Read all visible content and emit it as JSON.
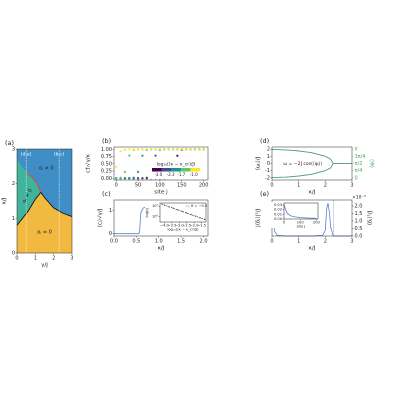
{
  "chart_data": [
    {
      "type": "phase",
      "panel_label": "(a)",
      "xlabel": "γ/J",
      "ylabel": "κ/J",
      "xlim": [
        0,
        3
      ],
      "ylim": [
        0,
        3
      ],
      "xticks": [
        0,
        1,
        2,
        3
      ],
      "yticks": [
        0,
        1,
        2,
        3
      ],
      "regions": [
        {
          "label": "αᵢ ≠ 0",
          "color": "#3f8fc6",
          "x": [
            0,
            3,
            3,
            0
          ],
          "values": [
            0,
            0,
            3,
            3
          ]
        },
        {
          "label": "αᵣ ≠ 0",
          "color": "#3fb39c",
          "x": [
            0,
            0.3,
            0.6,
            1.0,
            1.3,
            1.1,
            0.8,
            0.4,
            0
          ],
          "values": [
            0.8,
            1.0,
            1.2,
            1.55,
            1.75,
            2.0,
            2.2,
            2.4,
            2.7
          ]
        },
        {
          "label": "αᵢ = 0",
          "color": "#f2b941",
          "x": [
            0,
            0,
            0.3,
            0.6,
            1.0,
            1.3,
            1.5,
            2.0,
            2.5,
            3,
            3
          ],
          "values": [
            0,
            0.8,
            1.0,
            1.2,
            1.55,
            1.75,
            1.6,
            1.3,
            1.15,
            1.05,
            0
          ]
        }
      ],
      "lines": [
        {
          "color": "#111111",
          "x": [
            0,
            0.3,
            0.6,
            1.0,
            1.3,
            1.5,
            2.0,
            2.5,
            3
          ],
          "values": [
            0.8,
            1.0,
            1.2,
            1.55,
            1.75,
            1.6,
            1.3,
            1.15,
            1.05
          ]
        },
        {
          "color": "#e0403a",
          "x": [
            0.5,
            0.8,
            1.1,
            1.3
          ],
          "values": [
            2.3,
            2.2,
            2.0,
            1.75
          ]
        }
      ],
      "vlines": [
        {
          "x": 0.5,
          "label": "(d,e)"
        },
        {
          "x": 2.3,
          "label": "(b,c)"
        }
      ]
    },
    {
      "type": "scatter",
      "panel_label": "(b)",
      "xlabel": "site j",
      "ylabel": "c†ⱼ√γ/κ",
      "xlim": [
        -5,
        210
      ],
      "ylim": [
        -0.06,
        1.08
      ],
      "xticks": [
        0,
        50,
        100,
        150,
        200
      ],
      "yticks": [
        {
          "value": 0,
          "label": "0.00"
        },
        {
          "value": 0.25,
          "label": "0.25"
        },
        {
          "value": 0.5,
          "label": "0.50"
        },
        {
          "value": 0.75,
          "label": "0.75"
        },
        {
          "value": 1,
          "label": "1.00"
        }
      ],
      "x": [
        0,
        10,
        20,
        30,
        40,
        50,
        60,
        70,
        80,
        90,
        100,
        110,
        120,
        130,
        140,
        150,
        160,
        170,
        180,
        190,
        200
      ],
      "series": [
        {
          "color": "#440154",
          "values": [
            0,
            0,
            0,
            0,
            0,
            0,
            0,
            0,
            0,
            0,
            0,
            0,
            0.02,
            0.22,
            0.78,
            0.98,
            1,
            1,
            1,
            1,
            1
          ]
        },
        {
          "color": "#3b528b",
          "values": [
            0,
            0,
            0,
            0,
            0,
            0,
            0,
            0.02,
            0.22,
            0.78,
            0.98,
            1,
            1,
            1,
            1,
            1,
            1,
            1,
            1,
            1,
            1
          ]
        },
        {
          "color": "#21918c",
          "values": [
            0,
            0,
            0,
            0,
            0.02,
            0.22,
            0.78,
            0.98,
            1,
            1,
            1,
            1,
            1,
            1,
            1,
            1,
            1,
            1,
            1,
            1,
            1
          ]
        },
        {
          "color": "#5ec962",
          "values": [
            0,
            0.02,
            0.22,
            0.78,
            0.98,
            1,
            1,
            1,
            1,
            1,
            1,
            1,
            1,
            1,
            1,
            1,
            1,
            1,
            1,
            1,
            1
          ]
        },
        {
          "color": "#fde725",
          "values": [
            0.4,
            0.93,
            0.99,
            1,
            1,
            1,
            1,
            1,
            1,
            1,
            1,
            1,
            1,
            1,
            1,
            1,
            1,
            1,
            1,
            1,
            1
          ]
        }
      ],
      "colorbar": {
        "label": "log₁₀((κ − κ_cr)/J)",
        "clim": [
          -3.35,
          -0.65
        ],
        "colors": [
          "#440154",
          "#3b528b",
          "#21918c",
          "#5ec962",
          "#fde725"
        ],
        "ticks": [
          {
            "value": -3.0,
            "label": "-3.0"
          },
          {
            "value": -2.3,
            "label": "-2.3"
          },
          {
            "value": -1.7,
            "label": "-1.7"
          },
          {
            "value": -1.0,
            "label": "-1.0"
          }
        ]
      }
    },
    {
      "type": "line",
      "panel_label": "(c)",
      "xlabel": "κ/J",
      "ylabel": "⟨cⱼ⟩√γ/J",
      "xlim": [
        0,
        2.1
      ],
      "ylim": [
        -0.1,
        1.45
      ],
      "xticks": [
        {
          "value": 0,
          "label": "0.0"
        },
        {
          "value": 0.5,
          "label": "0.5"
        },
        {
          "value": 1,
          "label": "1.0"
        },
        {
          "value": 1.5,
          "label": "1.5"
        },
        {
          "value": 2,
          "label": "2.0"
        }
      ],
      "yticks": [
        0,
        1
      ],
      "series": [
        {
          "color": "#5b7fcf",
          "x": [
            0,
            0.2,
            0.4,
            0.5,
            0.55,
            0.57,
            0.6,
            0.65,
            0.7,
            0.8,
            1,
            1.5,
            2
          ],
          "values": [
            0,
            0,
            0,
            0,
            0,
            0.05,
            0.9,
            1.1,
            1.15,
            1.2,
            1.22,
            1.24,
            1.25
          ]
        }
      ],
      "inset": {
        "xlabel": "log₁₀((κ − κ_cr)/J)",
        "ylabel": "log|c|",
        "xlim": [
          -4.3,
          -1.2
        ],
        "ylim": [
          -0.5,
          1.3
        ],
        "xticks": [
          {
            "value": -4.0,
            "label": "−4.0"
          },
          {
            "value": -3.5,
            "label": "−3.5"
          },
          {
            "value": -3.0,
            "label": "−3.0"
          },
          {
            "value": -2.5,
            "label": "−2.5"
          },
          {
            "value": -2.0,
            "label": "−2.0"
          },
          {
            "value": -1.5,
            "label": "−1.5"
          }
        ],
        "yticks": [
          {
            "value": 0,
            "label": "10⁰"
          },
          {
            "value": 1,
            "label": "10¹"
          }
        ],
        "series": [
          {
            "color": "#5b7fcf",
            "style": "dots",
            "x": [
              -4.0,
              -3.7,
              -3.4,
              -3.1,
              -2.8,
              -2.5,
              -2.2,
              -1.9,
              -1.6,
              -1.3
            ],
            "values": [
              1.1,
              0.95,
              0.8,
              0.65,
              0.5,
              0.35,
              0.2,
              0.05,
              -0.1,
              -0.25
            ]
          },
          {
            "color": "#444444",
            "style": "dashed",
            "name": "θ = −0.5",
            "x": [
              -4.2,
              -1.2
            ],
            "values": [
              1.2,
              -0.3
            ]
          }
        ]
      }
    },
    {
      "type": "line",
      "panel_label": "(d)",
      "xlabel": "κ/J",
      "ylabel": "⟨ωⱼ⟩/J",
      "y2label": "⟨φⱼ⟩",
      "annotation": "ω = −2J cos(⟨φⱼ⟩)",
      "xlim": [
        0,
        3
      ],
      "ylim": [
        -2.3,
        2.3
      ],
      "y2lim": [
        -0.236,
        3.377
      ],
      "xticks": [
        0,
        1,
        2,
        3
      ],
      "yticks": [
        -2,
        -1,
        0,
        1,
        2
      ],
      "y2ticks": [
        0,
        {
          "value": 0.7854,
          "label": "π/4"
        },
        {
          "value": 1.5708,
          "label": "π/2"
        },
        {
          "value": 2.3562,
          "label": "3π/4"
        },
        {
          "value": 3.1416,
          "label": "π"
        }
      ],
      "y2color": "#4fa86f",
      "series": [
        {
          "color": "#5b7fcf",
          "x": [
            0,
            0.5,
            1,
            1.5,
            2,
            2.2,
            2.3,
            2.5,
            3
          ],
          "values": [
            1.95,
            1.9,
            1.75,
            1.5,
            1.0,
            0.6,
            0,
            0,
            0
          ]
        },
        {
          "color": "#5b7fcf",
          "x": [
            0,
            0.5,
            1,
            1.5,
            2,
            2.2,
            2.3
          ],
          "values": [
            -1.95,
            -1.9,
            -1.75,
            -1.5,
            -1.0,
            -0.6,
            0
          ]
        },
        {
          "color": "#4fa86f",
          "axis": "y2",
          "x": [
            0,
            0.5,
            1,
            1.5,
            2,
            2.2,
            2.3,
            2.5,
            3
          ],
          "values": [
            3.1,
            3.06,
            2.95,
            2.75,
            2.36,
            2.04,
            1.571,
            1.571,
            1.571
          ]
        },
        {
          "color": "#4fa86f",
          "axis": "y2",
          "x": [
            0,
            0.5,
            1,
            1.5,
            2,
            2.2,
            2.3
          ],
          "values": [
            0.04,
            0.08,
            0.2,
            0.39,
            0.79,
            1.1,
            1.571
          ]
        }
      ]
    },
    {
      "type": "line",
      "panel_label": "(e)",
      "xlabel": "κ/J",
      "ylabel": "|⟨δⱼ⟩|²/J",
      "y2label": "⟨δⱼ⟩²/J",
      "y2multiplier": "×10⁻³",
      "xlim": [
        0,
        3
      ],
      "xticks": [
        0,
        1,
        2,
        3
      ],
      "y2lim": [
        0,
        2.4
      ],
      "y2ticks": [
        {
          "value": 0,
          "label": "0.0"
        },
        {
          "value": 0.5,
          "label": "0.5"
        },
        {
          "value": 1,
          "label": "1.0"
        },
        {
          "value": 1.5,
          "label": "1.5"
        },
        {
          "value": 2,
          "label": "2.0"
        }
      ],
      "vlines": [
        {
          "x": 2.3
        }
      ],
      "series": [
        {
          "color": "#5b7fcf",
          "axis": "y2",
          "x": [
            0,
            0.05,
            0.1,
            0.2,
            0.5,
            1,
            1.5,
            1.9,
            2.0,
            2.05,
            2.1,
            2.15,
            2.2,
            2.3,
            2.5,
            3
          ],
          "values": [
            2.2,
            1.0,
            0.3,
            0.05,
            0,
            0,
            0,
            0.05,
            0.4,
            1.8,
            2.2,
            1.6,
            0.6,
            0,
            0,
            0
          ]
        }
      ],
      "inset": {
        "xlabel": "site j",
        "xlim": [
          0,
          210
        ],
        "ylim": [
          0,
          0.034
        ],
        "xticks": [
          0,
          100,
          200
        ],
        "yticks": [
          {
            "value": 0,
            "label": "0.00"
          },
          {
            "value": 0.01,
            "label": "0.01"
          },
          {
            "value": 0.02,
            "label": "0.02"
          },
          {
            "value": 0.03,
            "label": "0.03"
          }
        ],
        "series": [
          {
            "color": "#5b7fcf",
            "x": [
              0,
              10,
              20,
              40,
              60,
              100,
              150,
              200
            ],
            "values": [
              0.03,
              0.02,
              0.012,
              0.007,
              0.005,
              0.003,
              0.002,
              0.0015
            ]
          }
        ]
      }
    }
  ]
}
